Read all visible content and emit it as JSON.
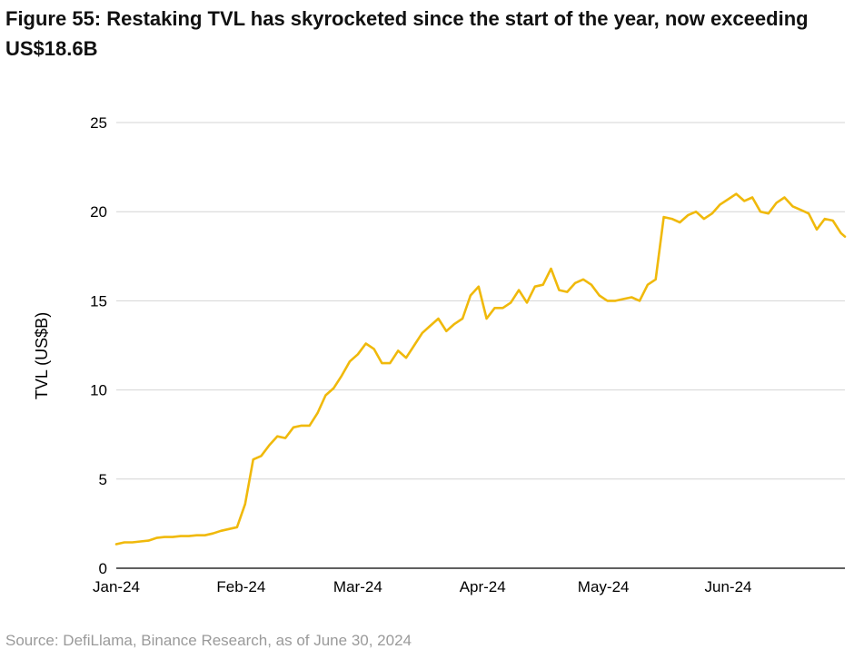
{
  "figure": {
    "title": "Figure 55: Restaking TVL has skyrocketed since the start of the year, now exceeding US$18.6B",
    "source": "Source: DefiLlama, Binance Research, as of June 30, 2024"
  },
  "colors": {
    "line": "#F0B90B",
    "grid": "#d4d4d4",
    "axis": "#000000"
  },
  "chart_data": {
    "type": "line",
    "title": "Figure 55: Restaking TVL has skyrocketed since the start of the year, now exceeding US$18.6B",
    "xlabel": "",
    "ylabel": "TVL (US$B)",
    "ylim": [
      0,
      25
    ],
    "yticks": [
      0,
      5,
      10,
      15,
      20,
      25
    ],
    "xlim": [
      "2024-01-01",
      "2024-06-30"
    ],
    "xticks": [
      {
        "date": "2024-01-01",
        "label": "Jan-24"
      },
      {
        "date": "2024-02-01",
        "label": "Feb-24"
      },
      {
        "date": "2024-03-01",
        "label": "Mar-24"
      },
      {
        "date": "2024-04-01",
        "label": "Apr-24"
      },
      {
        "date": "2024-05-01",
        "label": "May-24"
      },
      {
        "date": "2024-06-01",
        "label": "Jun-24"
      }
    ],
    "grid": "horizontal",
    "series": [
      {
        "x": [
          "2024-01-01",
          "2024-01-03",
          "2024-01-05",
          "2024-01-07",
          "2024-01-09",
          "2024-01-11",
          "2024-01-13",
          "2024-01-15",
          "2024-01-17",
          "2024-01-19",
          "2024-01-21",
          "2024-01-23",
          "2024-01-25",
          "2024-01-27",
          "2024-01-29",
          "2024-01-31",
          "2024-02-02",
          "2024-02-04",
          "2024-02-06",
          "2024-02-08",
          "2024-02-10",
          "2024-02-12",
          "2024-02-14",
          "2024-02-16",
          "2024-02-18",
          "2024-02-20",
          "2024-02-22",
          "2024-02-24",
          "2024-02-26",
          "2024-02-28",
          "2024-03-01",
          "2024-03-03",
          "2024-03-05",
          "2024-03-07",
          "2024-03-09",
          "2024-03-11",
          "2024-03-13",
          "2024-03-15",
          "2024-03-17",
          "2024-03-19",
          "2024-03-21",
          "2024-03-23",
          "2024-03-25",
          "2024-03-27",
          "2024-03-29",
          "2024-03-31",
          "2024-04-02",
          "2024-04-04",
          "2024-04-06",
          "2024-04-08",
          "2024-04-10",
          "2024-04-12",
          "2024-04-14",
          "2024-04-16",
          "2024-04-18",
          "2024-04-20",
          "2024-04-22",
          "2024-04-24",
          "2024-04-26",
          "2024-04-28",
          "2024-04-30",
          "2024-05-02",
          "2024-05-04",
          "2024-05-06",
          "2024-05-08",
          "2024-05-10",
          "2024-05-12",
          "2024-05-14",
          "2024-05-16",
          "2024-05-18",
          "2024-05-20",
          "2024-05-22",
          "2024-05-24",
          "2024-05-26",
          "2024-05-28",
          "2024-05-30",
          "2024-06-01",
          "2024-06-03",
          "2024-06-05",
          "2024-06-07",
          "2024-06-09",
          "2024-06-11",
          "2024-06-13",
          "2024-06-15",
          "2024-06-17",
          "2024-06-19",
          "2024-06-21",
          "2024-06-23",
          "2024-06-25",
          "2024-06-27",
          "2024-06-29",
          "2024-06-30"
        ],
        "y": [
          1.35,
          1.45,
          1.45,
          1.5,
          1.55,
          1.7,
          1.75,
          1.75,
          1.8,
          1.8,
          1.85,
          1.85,
          1.95,
          2.1,
          2.2,
          2.3,
          3.6,
          6.1,
          6.3,
          6.9,
          7.4,
          7.3,
          7.9,
          8.0,
          8.0,
          8.7,
          9.7,
          10.1,
          10.8,
          11.6,
          12.0,
          12.6,
          12.3,
          11.5,
          11.5,
          12.2,
          11.8,
          12.5,
          13.2,
          13.6,
          14.0,
          13.3,
          13.7,
          14.0,
          15.3,
          15.8,
          14.0,
          14.6,
          14.6,
          14.9,
          15.6,
          14.9,
          15.8,
          15.9,
          16.8,
          15.6,
          15.5,
          16.0,
          16.2,
          15.9,
          15.3,
          15.0,
          15.0,
          15.1,
          15.2,
          15.0,
          15.9,
          16.2,
          19.7,
          19.6,
          19.4,
          19.8,
          20.0,
          19.6,
          19.9,
          20.4,
          20.7,
          21.0,
          20.6,
          20.8,
          20.0,
          19.9,
          20.5,
          20.8,
          20.3,
          20.1,
          19.9,
          19.0,
          19.6,
          19.5,
          18.8,
          18.6
        ],
        "color": "#F0B90B"
      }
    ]
  }
}
